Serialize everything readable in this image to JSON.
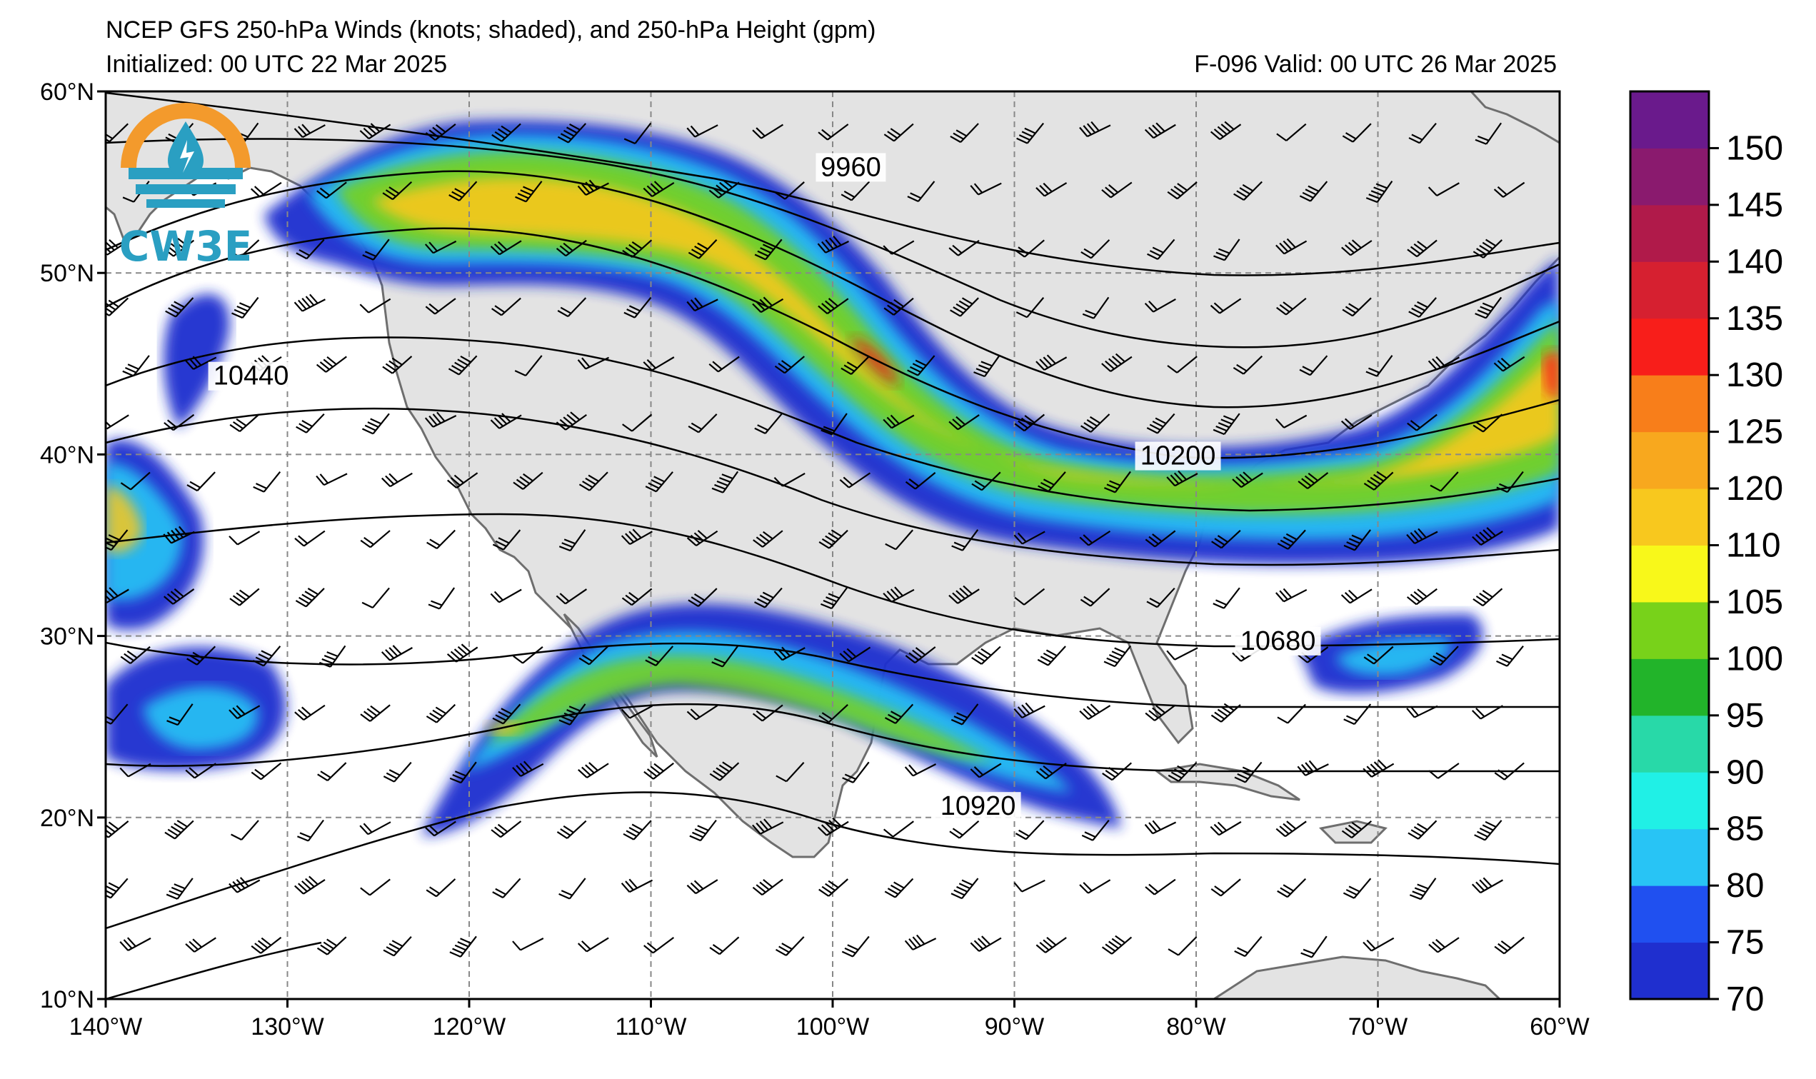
{
  "header": {
    "title": "NCEP GFS 250-hPa Winds (knots; shaded), and 250-hPa Height (gpm)",
    "initialized": "Initialized: 00 UTC 22 Mar 2025",
    "valid": "F-096  Valid: 00 UTC 26 Mar 2025"
  },
  "logo": {
    "text": "CW3E",
    "icon": "water-drop-sun-icon"
  },
  "map": {
    "lon_range": [
      -140,
      -60
    ],
    "lat_range": [
      10,
      60
    ],
    "lon_labels": [
      "140°W",
      "130°W",
      "120°W",
      "110°W",
      "100°W",
      "90°W",
      "80°W",
      "70°W",
      "60°W"
    ],
    "lat_labels": [
      "60°N",
      "50°N",
      "40°N",
      "30°N",
      "20°N",
      "10°N"
    ],
    "gridlines": "dashed",
    "land_color": "#e3e3e3",
    "ocean_color": "#ffffff"
  },
  "contours": {
    "labels": [
      {
        "text": "9960",
        "lon": -99,
        "lat": 55.5
      },
      {
        "text": "10440",
        "lon": -132,
        "lat": 44
      },
      {
        "text": "10200",
        "lon": -81,
        "lat": 39.6
      },
      {
        "text": "10680",
        "lon": -75.5,
        "lat": 29.4
      },
      {
        "text": "10920",
        "lon": -92,
        "lat": 20.3
      }
    ]
  },
  "colorbar": {
    "levels": [
      70,
      75,
      80,
      85,
      90,
      95,
      100,
      105,
      110,
      120,
      125,
      130,
      135,
      140,
      145,
      150
    ],
    "labels": [
      "150",
      "145",
      "140",
      "135",
      "130",
      "125",
      "120",
      "110",
      "105",
      "100",
      "95",
      "90",
      "85",
      "80",
      "75",
      "70"
    ],
    "colors": [
      "#1f2fcf",
      "#2050f0",
      "#28c4f5",
      "#20f0e6",
      "#28d9a8",
      "#22b42a",
      "#78d21a",
      "#f8f81a",
      "#f8c81e",
      "#f8a81e",
      "#f87e1a",
      "#f81e1a",
      "#d62030",
      "#b01a4a",
      "#8a1a6e",
      "#6a1a8c"
    ]
  }
}
